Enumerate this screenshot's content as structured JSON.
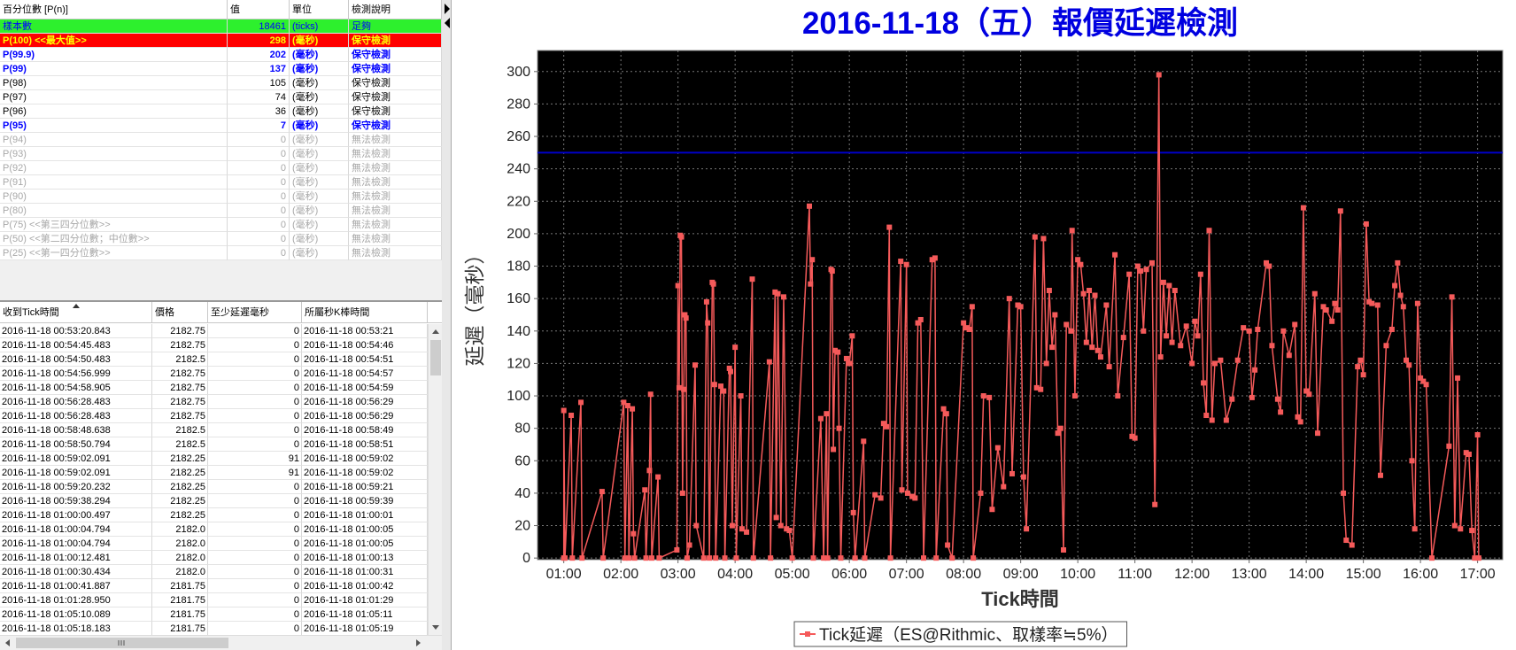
{
  "percentile_table": {
    "headers": [
      "百分位數 [P(n)]",
      "值",
      "單位",
      "檢測說明"
    ],
    "rows": [
      {
        "label": "樣本數",
        "value": 18461,
        "unit": "(ticks)",
        "note": "足夠",
        "style": "sample"
      },
      {
        "label": "P(100)  <<最大值>>",
        "value": 298,
        "unit": "(毫秒)",
        "note": "保守檢測",
        "style": "max"
      },
      {
        "label": "P(99.9)",
        "value": 202,
        "unit": "(毫秒)",
        "note": "保守檢測",
        "style": "blue"
      },
      {
        "label": "P(99)",
        "value": 137,
        "unit": "(毫秒)",
        "note": "保守檢測",
        "style": "blue"
      },
      {
        "label": "P(98)",
        "value": 105,
        "unit": "(毫秒)",
        "note": "保守檢測",
        "style": "normal"
      },
      {
        "label": "P(97)",
        "value": 74,
        "unit": "(毫秒)",
        "note": "保守檢測",
        "style": "normal"
      },
      {
        "label": "P(96)",
        "value": 36,
        "unit": "(毫秒)",
        "note": "保守檢測",
        "style": "normal"
      },
      {
        "label": "P(95)",
        "value": 7,
        "unit": "(毫秒)",
        "note": "保守檢測",
        "style": "blue"
      },
      {
        "label": "P(94)",
        "value": 0,
        "unit": "(毫秒)",
        "note": "無法檢測",
        "style": "na"
      },
      {
        "label": "P(93)",
        "value": 0,
        "unit": "(毫秒)",
        "note": "無法檢測",
        "style": "na"
      },
      {
        "label": "P(92)",
        "value": 0,
        "unit": "(毫秒)",
        "note": "無法檢測",
        "style": "na"
      },
      {
        "label": "P(91)",
        "value": 0,
        "unit": "(毫秒)",
        "note": "無法檢測",
        "style": "na"
      },
      {
        "label": "P(90)",
        "value": 0,
        "unit": "(毫秒)",
        "note": "無法檢測",
        "style": "na"
      },
      {
        "label": "P(80)",
        "value": 0,
        "unit": "(毫秒)",
        "note": "無法檢測",
        "style": "na"
      },
      {
        "label": "P(75)  <<第三四分位數>>",
        "value": 0,
        "unit": "(毫秒)",
        "note": "無法檢測",
        "style": "na"
      },
      {
        "label": "P(50)  <<第二四分位數；中位數>>",
        "value": 0,
        "unit": "(毫秒)",
        "note": "無法檢測",
        "style": "na"
      },
      {
        "label": "P(25)  <<第一四分位數>>",
        "value": 0,
        "unit": "(毫秒)",
        "note": "無法檢測",
        "style": "na"
      }
    ]
  },
  "tick_table": {
    "headers": [
      "收到Tick時間",
      "價格",
      "至少延遲毫秒",
      "所屬秒K棒時間"
    ],
    "rows": [
      [
        "2016-11-18 00:53:20.843",
        "2182.75",
        0,
        "2016-11-18 00:53:21"
      ],
      [
        "2016-11-18 00:54:45.483",
        "2182.75",
        0,
        "2016-11-18 00:54:46"
      ],
      [
        "2016-11-18 00:54:50.483",
        "2182.5",
        0,
        "2016-11-18 00:54:51"
      ],
      [
        "2016-11-18 00:54:56.999",
        "2182.75",
        0,
        "2016-11-18 00:54:57"
      ],
      [
        "2016-11-18 00:54:58.905",
        "2182.75",
        0,
        "2016-11-18 00:54:59"
      ],
      [
        "2016-11-18 00:56:28.483",
        "2182.75",
        0,
        "2016-11-18 00:56:29"
      ],
      [
        "2016-11-18 00:56:28.483",
        "2182.75",
        0,
        "2016-11-18 00:56:29"
      ],
      [
        "2016-11-18 00:58:48.638",
        "2182.5",
        0,
        "2016-11-18 00:58:49"
      ],
      [
        "2016-11-18 00:58:50.794",
        "2182.5",
        0,
        "2016-11-18 00:58:51"
      ],
      [
        "2016-11-18 00:59:02.091",
        "2182.25",
        91,
        "2016-11-18 00:59:02"
      ],
      [
        "2016-11-18 00:59:02.091",
        "2182.25",
        91,
        "2016-11-18 00:59:02"
      ],
      [
        "2016-11-18 00:59:20.232",
        "2182.25",
        0,
        "2016-11-18 00:59:21"
      ],
      [
        "2016-11-18 00:59:38.294",
        "2182.25",
        0,
        "2016-11-18 00:59:39"
      ],
      [
        "2016-11-18 01:00:00.497",
        "2182.25",
        0,
        "2016-11-18 01:00:01"
      ],
      [
        "2016-11-18 01:00:04.794",
        "2182.0",
        0,
        "2016-11-18 01:00:05"
      ],
      [
        "2016-11-18 01:00:04.794",
        "2182.0",
        0,
        "2016-11-18 01:00:05"
      ],
      [
        "2016-11-18 01:00:12.481",
        "2182.0",
        0,
        "2016-11-18 01:00:13"
      ],
      [
        "2016-11-18 01:00:30.434",
        "2182.0",
        0,
        "2016-11-18 01:00:31"
      ],
      [
        "2016-11-18 01:00:41.887",
        "2181.75",
        0,
        "2016-11-18 01:00:42"
      ],
      [
        "2016-11-18 01:01:28.950",
        "2181.75",
        0,
        "2016-11-18 01:01:29"
      ],
      [
        "2016-11-18 01:05:10.089",
        "2181.75",
        0,
        "2016-11-18 01:05:11"
      ],
      [
        "2016-11-18 01:05:18.183",
        "2181.75",
        0,
        "2016-11-18 01:05:19"
      ]
    ]
  },
  "chart_data": {
    "type": "line",
    "title": "2016-11-18（五）報價延遲檢測",
    "x_label": "Tick時間",
    "y_label": "延遲（毫秒）",
    "xlim": [
      0.54,
      17.44
    ],
    "xticks": [
      {
        "value": 1,
        "label": "01:00"
      },
      {
        "value": 2,
        "label": "02:00"
      },
      {
        "value": 3,
        "label": "03:00"
      },
      {
        "value": 4,
        "label": "04:00"
      },
      {
        "value": 5,
        "label": "05:00"
      },
      {
        "value": 6,
        "label": "06:00"
      },
      {
        "value": 7,
        "label": "07:00"
      },
      {
        "value": 8,
        "label": "08:00"
      },
      {
        "value": 9,
        "label": "09:00"
      },
      {
        "value": 10,
        "label": "10:00"
      },
      {
        "value": 11,
        "label": "11:00"
      },
      {
        "value": 12,
        "label": "12:00"
      },
      {
        "value": 13,
        "label": "13:00"
      },
      {
        "value": 14,
        "label": "14:00"
      },
      {
        "value": 15,
        "label": "15:00"
      },
      {
        "value": 16,
        "label": "16:00"
      },
      {
        "value": 17,
        "label": "17:00"
      }
    ],
    "ylim": [
      -1,
      313
    ],
    "yticks": [
      0,
      20,
      40,
      60,
      80,
      100,
      120,
      140,
      160,
      180,
      200,
      220,
      240,
      260,
      280,
      300
    ],
    "grid": true,
    "background": "#000000",
    "threshold": {
      "value": 250,
      "color": "#0000c8"
    },
    "legend": "bottom",
    "series": [
      {
        "name": "Tick延遲（ES@Rithmic、取樣率≒5%）",
        "color": "#f55a5a",
        "x": [
          1.0,
          1.0,
          1.02,
          1.13,
          1.15,
          1.3,
          1.32,
          1.67,
          1.69,
          2.05,
          2.07,
          2.12,
          2.14,
          2.2,
          2.22,
          2.24,
          2.42,
          2.44,
          2.5,
          2.52,
          2.54,
          2.65,
          2.67,
          2.98,
          3.0,
          3.02,
          3.04,
          3.06,
          3.08,
          3.1,
          3.12,
          3.14,
          3.16,
          3.2,
          3.3,
          3.32,
          3.45,
          3.5,
          3.52,
          3.55,
          3.6,
          3.62,
          3.64,
          3.66,
          3.75,
          3.8,
          3.82,
          3.9,
          3.92,
          3.95,
          4.0,
          4.02,
          4.1,
          4.12,
          4.2,
          4.3,
          4.32,
          4.6,
          4.62,
          4.7,
          4.72,
          4.75,
          4.8,
          4.85,
          4.9,
          4.95,
          5.0,
          5.3,
          5.32,
          5.35,
          5.37,
          5.5,
          5.55,
          5.6,
          5.62,
          5.68,
          5.7,
          5.72,
          5.75,
          5.8,
          5.82,
          5.85,
          5.95,
          6.0,
          6.05,
          6.07,
          6.1,
          6.25,
          6.27,
          6.45,
          6.55,
          6.6,
          6.65,
          6.7,
          6.72,
          6.9,
          6.92,
          7.0,
          7.02,
          7.1,
          7.15,
          7.2,
          7.25,
          7.3,
          7.45,
          7.5,
          7.52,
          7.65,
          7.7,
          7.72,
          7.8,
          8.0,
          8.05,
          8.1,
          8.15,
          8.17,
          8.3,
          8.35,
          8.45,
          8.5,
          8.6,
          8.7,
          8.8,
          8.85,
          8.95,
          9.0,
          9.05,
          9.1,
          9.25,
          9.28,
          9.35,
          9.4,
          9.45,
          9.5,
          9.55,
          9.6,
          9.65,
          9.7,
          9.75,
          9.8,
          9.88,
          9.9,
          9.95,
          10.0,
          10.05,
          10.1,
          10.15,
          10.2,
          10.25,
          10.3,
          10.35,
          10.4,
          10.5,
          10.55,
          10.65,
          10.7,
          10.8,
          10.9,
          10.95,
          11.0,
          11.05,
          11.1,
          11.15,
          11.2,
          11.3,
          11.35,
          11.42,
          11.45,
          11.5,
          11.55,
          11.6,
          11.65,
          11.7,
          11.8,
          11.9,
          12.0,
          12.05,
          12.1,
          12.15,
          12.2,
          12.25,
          12.3,
          12.35,
          12.4,
          12.5,
          12.6,
          12.7,
          12.8,
          12.9,
          13.0,
          13.05,
          13.1,
          13.15,
          13.3,
          13.35,
          13.4,
          13.5,
          13.55,
          13.6,
          13.7,
          13.8,
          13.85,
          13.9,
          13.95,
          14.0,
          14.05,
          14.15,
          14.2,
          14.3,
          14.35,
          14.45,
          14.5,
          14.55,
          14.6,
          14.65,
          14.7,
          14.8,
          14.9,
          14.95,
          15.0,
          15.05,
          15.1,
          15.15,
          15.25,
          15.3,
          15.4,
          15.5,
          15.55,
          15.6,
          15.65,
          15.7,
          15.75,
          15.8,
          15.85,
          15.9,
          15.95,
          16.0,
          16.05,
          16.1,
          16.2,
          16.5,
          16.55,
          16.6,
          16.65,
          16.7,
          16.8,
          16.85,
          16.9,
          16.95,
          17.0,
          17.02
        ],
        "values": [
          0,
          91,
          0,
          88,
          0,
          96,
          0,
          41,
          0,
          96,
          0,
          94,
          0,
          92,
          15,
          0,
          42,
          0,
          54,
          101,
          0,
          50,
          0,
          5,
          168,
          105,
          199,
          198,
          40,
          104,
          150,
          148,
          0,
          8,
          119,
          20,
          0,
          158,
          145,
          0,
          170,
          169,
          107,
          0,
          106,
          103,
          0,
          117,
          115,
          20,
          130,
          0,
          100,
          18,
          16,
          172,
          0,
          121,
          0,
          164,
          25,
          163,
          20,
          161,
          18,
          17,
          0,
          217,
          169,
          184,
          0,
          86,
          0,
          89,
          0,
          178,
          177,
          67,
          128,
          127,
          80,
          0,
          123,
          120,
          137,
          28,
          0,
          72,
          0,
          39,
          37,
          83,
          81,
          204,
          0,
          183,
          42,
          181,
          40,
          38,
          37,
          145,
          147,
          0,
          184,
          185,
          0,
          92,
          89,
          8,
          0,
          145,
          142,
          141,
          155,
          0,
          40,
          100,
          99,
          30,
          68,
          44,
          160,
          52,
          156,
          155,
          50,
          18,
          198,
          105,
          104,
          197,
          120,
          165,
          130,
          150,
          77,
          80,
          5,
          144,
          140,
          202,
          100,
          184,
          181,
          163,
          133,
          165,
          130,
          162,
          128,
          124,
          156,
          118,
          187,
          100,
          136,
          175,
          75,
          74,
          180,
          177,
          140,
          178,
          182,
          33,
          298,
          124,
          170,
          137,
          168,
          133,
          165,
          131,
          143,
          120,
          146,
          137,
          175,
          108,
          88,
          202,
          85,
          120,
          122,
          85,
          98,
          122,
          142,
          140,
          99,
          116,
          141,
          182,
          180,
          131,
          98,
          90,
          140,
          125,
          144,
          87,
          84,
          216,
          103,
          101,
          163,
          77,
          155,
          153,
          146,
          157,
          153,
          214,
          40,
          11,
          8,
          118,
          122,
          113,
          206,
          158,
          157,
          156,
          51,
          131,
          141,
          168,
          182,
          162,
          155,
          122,
          119,
          60,
          18,
          157,
          111,
          109,
          107,
          0,
          69,
          161,
          20,
          111,
          18,
          65,
          64,
          17,
          0,
          76,
          0
        ]
      }
    ]
  }
}
